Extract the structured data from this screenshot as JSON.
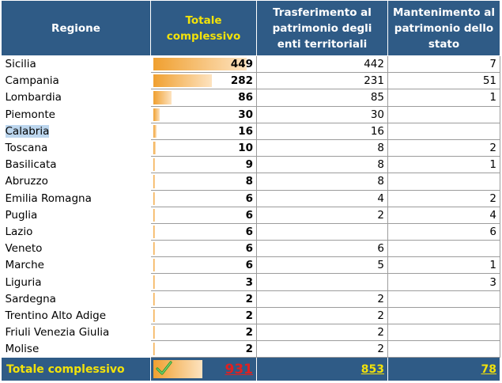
{
  "headers": {
    "region": "Regione",
    "total": "Totale complessivo",
    "transfer": "Trasferimento al patrimonio degli enti territoriali",
    "maintain": "Mantenimento al patrimonio dello stato"
  },
  "rows": [
    {
      "region": "Sicilia",
      "total": "449",
      "transfer": "442",
      "maintain": "7",
      "bar": 1.0
    },
    {
      "region": "Campania",
      "total": "282",
      "transfer": "231",
      "maintain": "51",
      "bar": 0.628
    },
    {
      "region": "Lombardia",
      "total": "86",
      "transfer": "85",
      "maintain": "1",
      "bar": 0.192
    },
    {
      "region": "Piemonte",
      "total": "30",
      "transfer": "30",
      "maintain": "",
      "bar": 0.067
    },
    {
      "region": "Calabria",
      "total": "16",
      "transfer": "16",
      "maintain": "",
      "bar": 0.036,
      "selected": true
    },
    {
      "region": "Toscana",
      "total": "10",
      "transfer": "8",
      "maintain": "2",
      "bar": 0.022
    },
    {
      "region": "Basilicata",
      "total": "9",
      "transfer": "8",
      "maintain": "1",
      "bar": 0.02
    },
    {
      "region": "Abruzzo",
      "total": "8",
      "transfer": "8",
      "maintain": "",
      "bar": 0.018
    },
    {
      "region": "Emilia Romagna",
      "total": "6",
      "transfer": "4",
      "maintain": "2",
      "bar": 0.013
    },
    {
      "region": "Puglia",
      "total": "6",
      "transfer": "2",
      "maintain": "4",
      "bar": 0.013
    },
    {
      "region": "Lazio",
      "total": "6",
      "transfer": "",
      "maintain": "6",
      "bar": 0.013
    },
    {
      "region": "Veneto",
      "total": "6",
      "transfer": "6",
      "maintain": "",
      "bar": 0.013
    },
    {
      "region": "Marche",
      "total": "6",
      "transfer": "5",
      "maintain": "1",
      "bar": 0.013
    },
    {
      "region": "Liguria",
      "total": "3",
      "transfer": "",
      "maintain": "3",
      "bar": 0.007
    },
    {
      "region": "Sardegna",
      "total": "2",
      "transfer": "2",
      "maintain": "",
      "bar": 0.004
    },
    {
      "region": "Trentino Alto Adige",
      "total": "2",
      "transfer": "2",
      "maintain": "",
      "bar": 0.004
    },
    {
      "region": "Friuli Venezia Giulia",
      "total": "2",
      "transfer": "2",
      "maintain": "",
      "bar": 0.004
    },
    {
      "region": "Molise",
      "total": "2",
      "transfer": "2",
      "maintain": "",
      "bar": 0.004
    }
  ],
  "footer": {
    "label": "Totale complessivo",
    "total": "931",
    "transfer": "853",
    "maintain": "78",
    "check_icon": "check-icon"
  },
  "colors": {
    "header_bg": "#2f5b86",
    "header_highlight": "#f2e20a",
    "bar": "#f0a030",
    "grand_total": "#e02020",
    "selection": "#bcd6ee"
  }
}
